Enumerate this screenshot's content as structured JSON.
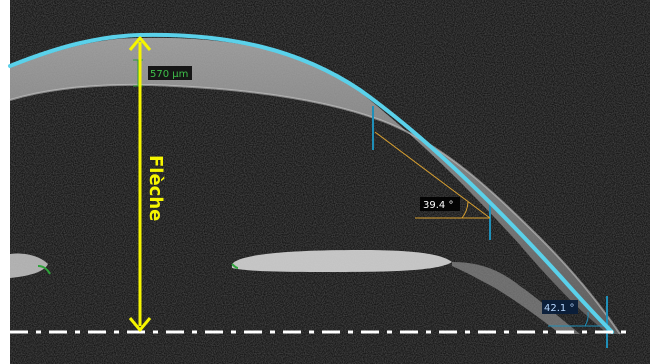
{
  "labels": {
    "sag_label": "Flèche",
    "thickness": "570 µm",
    "angle_1": "39.4 °",
    "angle_2": "42.1 °"
  },
  "colors": {
    "background_frame": "#ffffff",
    "scan_background": "#141414",
    "tissue": "#9a9a9a",
    "cornea_contour": "#5ad1ea",
    "sag_arrow": "#f5f500",
    "baseline": "#ffffff",
    "angle_lines": "#d9a030",
    "caliper": "#1f8fb8",
    "thickness_marker": "#2e9b3c",
    "lens_edge": "#2ea43a",
    "label_box_bg": "#000000",
    "label_text_light": "#ffffff",
    "label_text_green": "#3fbf4a",
    "label_text_blue": "#b8d8ff"
  }
}
